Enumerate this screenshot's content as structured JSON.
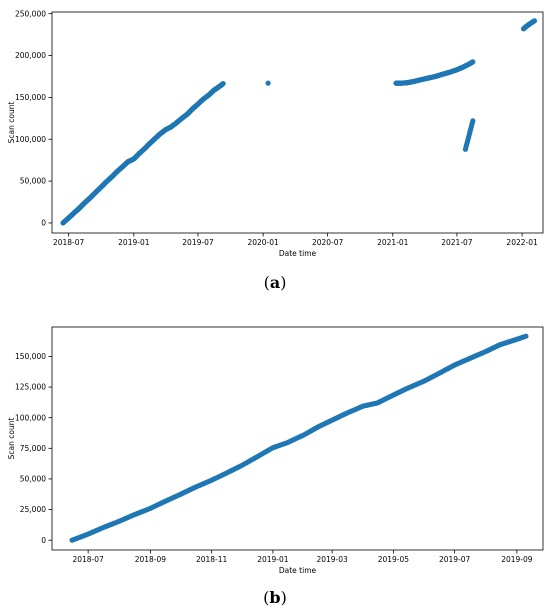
{
  "chart_data": [
    {
      "type": "scatter",
      "caption": "(a)",
      "xlabel": "Date time",
      "ylabel": "Scan count",
      "xlim": [
        "2018-05-15",
        "2022-03-01"
      ],
      "ylim": [
        -12000,
        252000
      ],
      "xticks": [
        {
          "date": "2018-07-01",
          "label": "2018-07"
        },
        {
          "date": "2019-01-01",
          "label": "2019-01"
        },
        {
          "date": "2019-07-01",
          "label": "2019-07"
        },
        {
          "date": "2020-01-01",
          "label": "2020-01"
        },
        {
          "date": "2020-07-01",
          "label": "2020-07"
        },
        {
          "date": "2021-01-01",
          "label": "2021-01"
        },
        {
          "date": "2021-07-01",
          "label": "2021-07"
        },
        {
          "date": "2022-01-01",
          "label": "2022-01"
        }
      ],
      "yticks": [
        {
          "value": 0,
          "label": "0"
        },
        {
          "value": 50000,
          "label": "50,000"
        },
        {
          "value": 100000,
          "label": "100,000"
        },
        {
          "value": 150000,
          "label": "150,000"
        },
        {
          "value": 200000,
          "label": "200,000"
        },
        {
          "value": 250000,
          "label": "250,000"
        }
      ],
      "grid": false,
      "color": "#1f77b4",
      "series": [
        {
          "points": [
            [
              "2018-06-15",
              0
            ],
            [
              "2018-07-01",
              6000
            ],
            [
              "2018-07-15",
              11500
            ],
            [
              "2018-08-01",
              18000
            ],
            [
              "2018-08-15",
              24000
            ],
            [
              "2018-09-01",
              30500
            ],
            [
              "2018-09-15",
              36500
            ],
            [
              "2018-10-01",
              43000
            ],
            [
              "2018-10-15",
              49000
            ],
            [
              "2018-11-01",
              55500
            ],
            [
              "2018-11-15",
              61500
            ],
            [
              "2018-12-01",
              67500
            ],
            [
              "2018-12-15",
              73000
            ],
            [
              "2019-01-01",
              76500
            ],
            [
              "2019-01-15",
              82500
            ],
            [
              "2019-02-01",
              89000
            ],
            [
              "2019-02-15",
              95000
            ],
            [
              "2019-03-01",
              100500
            ],
            [
              "2019-03-15",
              106000
            ],
            [
              "2019-04-01",
              111500
            ],
            [
              "2019-04-15",
              114500
            ],
            [
              "2019-05-01",
              119500
            ],
            [
              "2019-05-15",
              124500
            ],
            [
              "2019-06-01",
              130000
            ],
            [
              "2019-06-15",
              136000
            ],
            [
              "2019-07-01",
              142000
            ],
            [
              "2019-07-15",
              147500
            ],
            [
              "2019-08-01",
              153000
            ],
            [
              "2019-08-15",
              158500
            ],
            [
              "2019-09-01",
              163500
            ],
            [
              "2019-09-10",
              166500
            ],
            [
              "2020-01-15",
              167000
            ],
            [
              "2021-01-10",
              167000
            ],
            [
              "2021-01-25",
              167000
            ],
            [
              "2021-02-10",
              167500
            ],
            [
              "2021-03-01",
              169000
            ],
            [
              "2021-03-20",
              171000
            ],
            [
              "2021-04-10",
              173000
            ],
            [
              "2021-05-01",
              175000
            ],
            [
              "2021-05-20",
              177500
            ],
            [
              "2021-06-10",
              180000
            ],
            [
              "2021-07-01",
              183000
            ],
            [
              "2021-07-20",
              186500
            ],
            [
              "2021-08-05",
              190000
            ],
            [
              "2021-08-15",
              192500
            ],
            [
              "2021-07-25",
              88000
            ],
            [
              "2021-08-15",
              122000
            ],
            [
              "2022-01-05",
              232000
            ],
            [
              "2022-01-15",
              235500
            ],
            [
              "2022-01-25",
              238500
            ],
            [
              "2022-02-05",
              241500
            ]
          ]
        }
      ]
    },
    {
      "type": "scatter",
      "caption": "(b)",
      "xlabel": "Date time",
      "ylabel": "Scan count",
      "xlim": [
        "2018-05-26",
        "2019-09-27"
      ],
      "ylim": [
        -8000,
        174000
      ],
      "xticks": [
        {
          "date": "2018-07-01",
          "label": "2018-07"
        },
        {
          "date": "2018-09-01",
          "label": "2018-09"
        },
        {
          "date": "2018-11-01",
          "label": "2018-11"
        },
        {
          "date": "2019-01-01",
          "label": "2019-01"
        },
        {
          "date": "2019-03-01",
          "label": "2019-03"
        },
        {
          "date": "2019-05-01",
          "label": "2019-05"
        },
        {
          "date": "2019-07-01",
          "label": "2019-07"
        },
        {
          "date": "2019-09-01",
          "label": "2019-09"
        }
      ],
      "yticks": [
        {
          "value": 0,
          "label": "0"
        },
        {
          "value": 25000,
          "label": "25,000"
        },
        {
          "value": 50000,
          "label": "50,000"
        },
        {
          "value": 75000,
          "label": "75,000"
        },
        {
          "value": 100000,
          "label": "100,000"
        },
        {
          "value": 125000,
          "label": "125,000"
        },
        {
          "value": 150000,
          "label": "150,000"
        }
      ],
      "grid": false,
      "color": "#1f77b4",
      "series": [
        {
          "points": [
            [
              "2018-06-15",
              0
            ],
            [
              "2018-07-01",
              5000
            ],
            [
              "2018-07-15",
              10000
            ],
            [
              "2018-08-01",
              15500
            ],
            [
              "2018-08-15",
              20500
            ],
            [
              "2018-09-01",
              26000
            ],
            [
              "2018-09-15",
              31500
            ],
            [
              "2018-10-01",
              37500
            ],
            [
              "2018-10-15",
              43000
            ],
            [
              "2018-11-01",
              49000
            ],
            [
              "2018-11-15",
              54500
            ],
            [
              "2018-12-01",
              61000
            ],
            [
              "2018-12-15",
              67500
            ],
            [
              "2019-01-01",
              75500
            ],
            [
              "2019-01-15",
              79500
            ],
            [
              "2019-02-01",
              86000
            ],
            [
              "2019-02-15",
              92500
            ],
            [
              "2019-03-01",
              98000
            ],
            [
              "2019-03-15",
              103500
            ],
            [
              "2019-04-01",
              109500
            ],
            [
              "2019-04-15",
              112000
            ],
            [
              "2019-05-01",
              118500
            ],
            [
              "2019-05-15",
              124000
            ],
            [
              "2019-06-01",
              130000
            ],
            [
              "2019-06-15",
              136000
            ],
            [
              "2019-07-01",
              143000
            ],
            [
              "2019-07-15",
              148000
            ],
            [
              "2019-08-01",
              154000
            ],
            [
              "2019-08-15",
              159500
            ],
            [
              "2019-09-01",
              164000
            ],
            [
              "2019-09-10",
              166500
            ]
          ]
        }
      ]
    }
  ]
}
